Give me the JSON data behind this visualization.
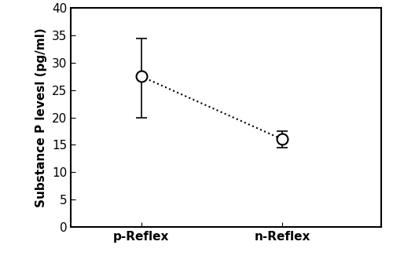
{
  "categories": [
    "p-Reflex",
    "n-Reflex"
  ],
  "x_positions": [
    1,
    2
  ],
  "means": [
    27.5,
    16.0
  ],
  "errors_upper": [
    7.0,
    1.5
  ],
  "errors_lower": [
    7.5,
    1.5
  ],
  "ylabel": "Substance P levesl (pg/ml)",
  "ylim": [
    0,
    40
  ],
  "yticks": [
    0,
    5,
    10,
    15,
    20,
    25,
    30,
    35,
    40
  ],
  "background_color": "#ffffff",
  "marker_color": "white",
  "marker_edge_color": "black",
  "line_color": "black",
  "errorbar_color": "black",
  "marker_size": 10,
  "marker_linewidth": 1.5,
  "errorbar_linewidth": 1.2,
  "line_linewidth": 1.5,
  "capsize": 5,
  "label_fontsize": 11,
  "tick_fontsize": 11
}
